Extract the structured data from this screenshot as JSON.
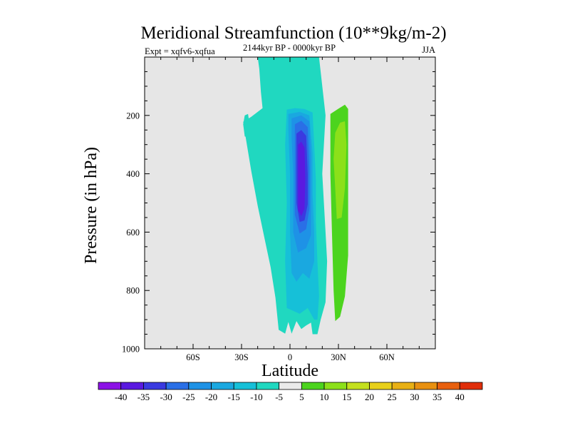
{
  "chart_data": {
    "type": "contour",
    "title": "Meridional Streamfunction (10**9kg/m-2)",
    "left_label": "Expt = xqfv6-xqfua",
    "center_label": "2144kyr BP - 0000kyr BP",
    "right_label": "JJA",
    "xlabel": "Latitude",
    "ylabel": "Pressure (in hPa)",
    "xlim": [
      -90,
      90
    ],
    "ylim": [
      0,
      1000
    ],
    "y_inverted": true,
    "x_ticks": [
      {
        "value": -60,
        "label": "60S"
      },
      {
        "value": -30,
        "label": "30S"
      },
      {
        "value": 0,
        "label": "0"
      },
      {
        "value": 30,
        "label": "30N"
      },
      {
        "value": 60,
        "label": "60N"
      }
    ],
    "y_ticks": [
      {
        "value": 200,
        "label": "200"
      },
      {
        "value": 400,
        "label": "400"
      },
      {
        "value": 600,
        "label": "600"
      },
      {
        "value": 800,
        "label": "800"
      },
      {
        "value": 1000,
        "label": "1000"
      }
    ],
    "missing_color": "#e6e6e6",
    "colorbar": {
      "levels": [
        "-40",
        "-35",
        "-30",
        "-25",
        "-20",
        "-15",
        "-10",
        "-5",
        "5",
        "10",
        "15",
        "20",
        "25",
        "30",
        "35",
        "40"
      ],
      "colors": [
        "#8c12e6",
        "#5a19e0",
        "#3a3ae0",
        "#2a6fe6",
        "#1e92e6",
        "#1aa8e0",
        "#16c0d8",
        "#20d8c0",
        "#ebebeb",
        "#4cd41e",
        "#8ce01a",
        "#c4e01e",
        "#e8d01a",
        "#e8b014",
        "#e89010",
        "#e8600e",
        "#e02e0a"
      ]
    },
    "regions": [
      {
        "name": "neg-5-left-band",
        "value_bin": "-10..-5",
        "color": "#20d8c0",
        "points": [
          [
            -20,
            1
          ],
          [
            -19,
            40
          ],
          [
            -18,
            120
          ],
          [
            -17,
            175
          ],
          [
            -24,
            205
          ],
          [
            -29,
            222
          ],
          [
            -27,
            290
          ],
          [
            -24,
            390
          ],
          [
            -20,
            510
          ],
          [
            -16,
            615
          ],
          [
            -12,
            720
          ],
          [
            -9,
            825
          ],
          [
            -7,
            935
          ],
          [
            -3,
            948
          ],
          [
            -1,
            908
          ],
          [
            1,
            948
          ],
          [
            4,
            905
          ],
          [
            7,
            932
          ],
          [
            10,
            920
          ],
          [
            13,
            910
          ],
          [
            14,
            950
          ],
          [
            17,
            950
          ],
          [
            19,
            900
          ],
          [
            22,
            840
          ],
          [
            23,
            700
          ],
          [
            22,
            600
          ],
          [
            21,
            500
          ],
          [
            20,
            400
          ],
          [
            21,
            300
          ],
          [
            22,
            200
          ],
          [
            18,
            1
          ]
        ]
      },
      {
        "name": "neg-5-blob-a",
        "value_bin": "-10..-5",
        "color": "#20d8c0",
        "points": [
          [
            -28,
            200
          ],
          [
            -26,
            195
          ],
          [
            -25,
            230
          ],
          [
            -26,
            275
          ],
          [
            -28,
            272
          ],
          [
            -29,
            230
          ]
        ]
      },
      {
        "name": "neg-10",
        "value_bin": "-15..-10",
        "color": "#16c0d8",
        "points": [
          [
            -2,
            180
          ],
          [
            3,
            175
          ],
          [
            9,
            178
          ],
          [
            14,
            190
          ],
          [
            15,
            300
          ],
          [
            16,
            420
          ],
          [
            16,
            560
          ],
          [
            17,
            700
          ],
          [
            18,
            820
          ],
          [
            17,
            900
          ],
          [
            15,
            900
          ],
          [
            11,
            860
          ],
          [
            6,
            880
          ],
          [
            2,
            870
          ],
          [
            -2,
            860
          ],
          [
            -3,
            700
          ],
          [
            -2,
            500
          ],
          [
            -3,
            300
          ]
        ]
      },
      {
        "name": "neg-15",
        "value_bin": "-20..-15",
        "color": "#1aa8e0",
        "points": [
          [
            -1,
            195
          ],
          [
            6,
            188
          ],
          [
            12,
            200
          ],
          [
            14,
            330
          ],
          [
            14,
            470
          ],
          [
            15,
            600
          ],
          [
            15,
            700
          ],
          [
            12,
            760
          ],
          [
            8,
            740
          ],
          [
            4,
            770
          ],
          [
            1,
            740
          ],
          [
            0,
            600
          ],
          [
            0,
            400
          ],
          [
            -1,
            250
          ]
        ]
      },
      {
        "name": "neg-20",
        "value_bin": "-25..-20",
        "color": "#1e92e6",
        "points": [
          [
            1,
            210
          ],
          [
            7,
            200
          ],
          [
            12,
            220
          ],
          [
            13,
            350
          ],
          [
            13,
            480
          ],
          [
            13,
            610
          ],
          [
            10,
            655
          ],
          [
            5,
            670
          ],
          [
            2,
            600
          ],
          [
            2,
            400
          ],
          [
            1,
            280
          ]
        ]
      },
      {
        "name": "neg-25",
        "value_bin": "-30..-25",
        "color": "#2a6fe6",
        "points": [
          [
            3,
            230
          ],
          [
            7,
            218
          ],
          [
            11,
            240
          ],
          [
            12,
            380
          ],
          [
            12,
            520
          ],
          [
            10,
            590
          ],
          [
            6,
            605
          ],
          [
            3,
            540
          ],
          [
            3,
            400
          ],
          [
            3,
            300
          ]
        ]
      },
      {
        "name": "neg-30",
        "value_bin": "-35..-30",
        "color": "#3a3ae0",
        "points": [
          [
            4,
            262
          ],
          [
            7,
            250
          ],
          [
            10,
            270
          ],
          [
            11,
            400
          ],
          [
            11,
            505
          ],
          [
            9,
            560
          ],
          [
            6,
            565
          ],
          [
            4,
            500
          ],
          [
            4,
            360
          ]
        ]
      },
      {
        "name": "neg-35",
        "value_bin": "-40..-35",
        "color": "#5a19e0",
        "points": [
          [
            5,
            300
          ],
          [
            7,
            290
          ],
          [
            9,
            310
          ],
          [
            9.5,
            420
          ],
          [
            9,
            520
          ],
          [
            7,
            545
          ],
          [
            5,
            525
          ],
          [
            5,
            410
          ]
        ]
      },
      {
        "name": "pos-5",
        "value_bin": "5..10",
        "color": "#4cd41e",
        "points": [
          [
            25,
            195
          ],
          [
            30,
            177
          ],
          [
            34,
            163
          ],
          [
            36,
            178
          ],
          [
            36,
            400
          ],
          [
            36,
            680
          ],
          [
            34,
            820
          ],
          [
            31,
            890
          ],
          [
            28,
            905
          ],
          [
            27,
            800
          ],
          [
            26,
            600
          ],
          [
            25,
            400
          ]
        ]
      },
      {
        "name": "pos-10",
        "value_bin": "10..15",
        "color": "#8ce01a",
        "points": [
          [
            28,
            260
          ],
          [
            31,
            225
          ],
          [
            34,
            220
          ],
          [
            35,
            300
          ],
          [
            34,
            450
          ],
          [
            32,
            550
          ],
          [
            29,
            555
          ],
          [
            28,
            450
          ],
          [
            27,
            350
          ]
        ]
      }
    ]
  }
}
